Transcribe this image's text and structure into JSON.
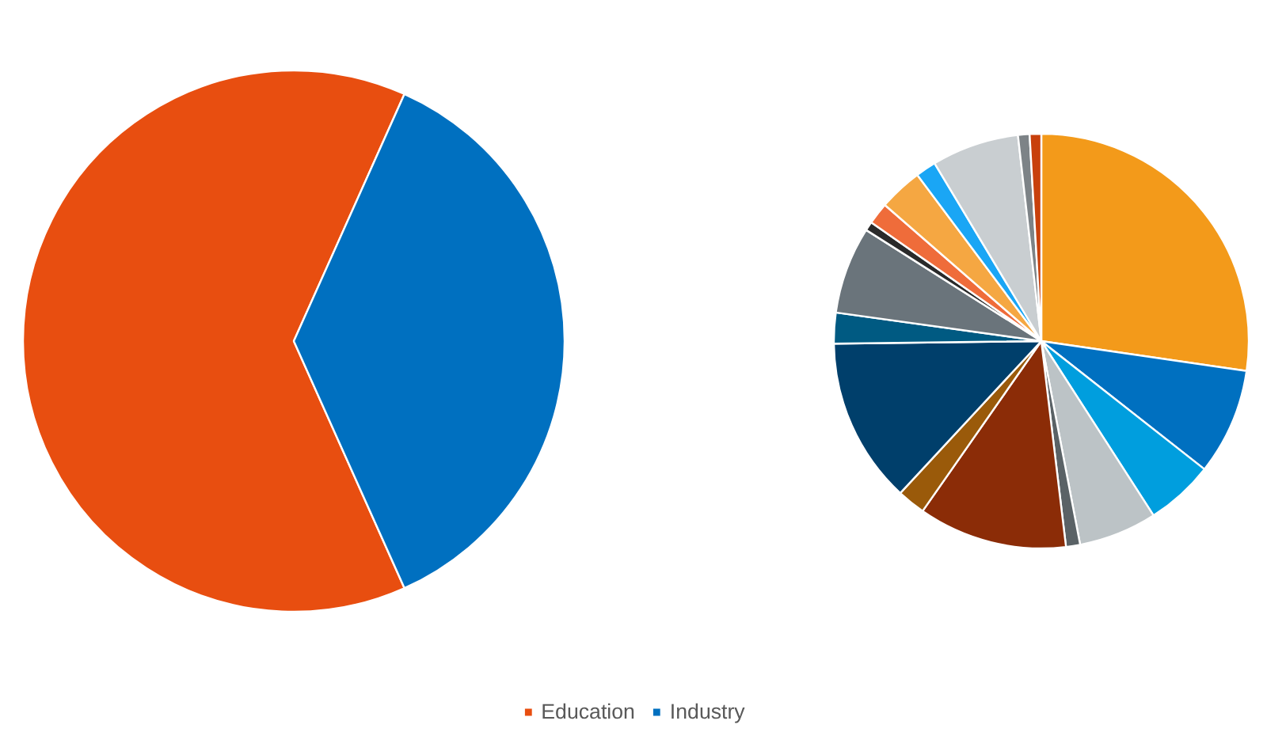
{
  "chart_data": [
    {
      "type": "pie",
      "categories": [
        "Education",
        "Industry"
      ],
      "values": [
        63.4,
        36.6
      ],
      "colors": [
        "#e84e10",
        "#0070c0"
      ],
      "legend": "bottom"
    },
    {
      "type": "pie",
      "categories": [
        null,
        null,
        null,
        null,
        null,
        null,
        null,
        null,
        null,
        null,
        null,
        null,
        null,
        null,
        null,
        null,
        null
      ],
      "values": [
        27.3,
        8.3,
        5.3,
        6.1,
        1.1,
        11.6,
        2.2,
        12.9,
        2.4,
        6.8,
        0.7,
        1.7,
        3.4,
        1.6,
        6.8,
        0.9,
        0.9
      ],
      "colors": [
        "#f39a1a",
        "#0070c0",
        "#009ede",
        "#bcc3c6",
        "#5a6266",
        "#8b2c07",
        "#9a5a0a",
        "#003f6b",
        "#005a82",
        "#6a747b",
        "#2a2a2a",
        "#ef6c3a",
        "#f5a742",
        "#1aa6f5",
        "#c9ced1",
        "#7d8387",
        "#c8400c"
      ]
    }
  ]
}
